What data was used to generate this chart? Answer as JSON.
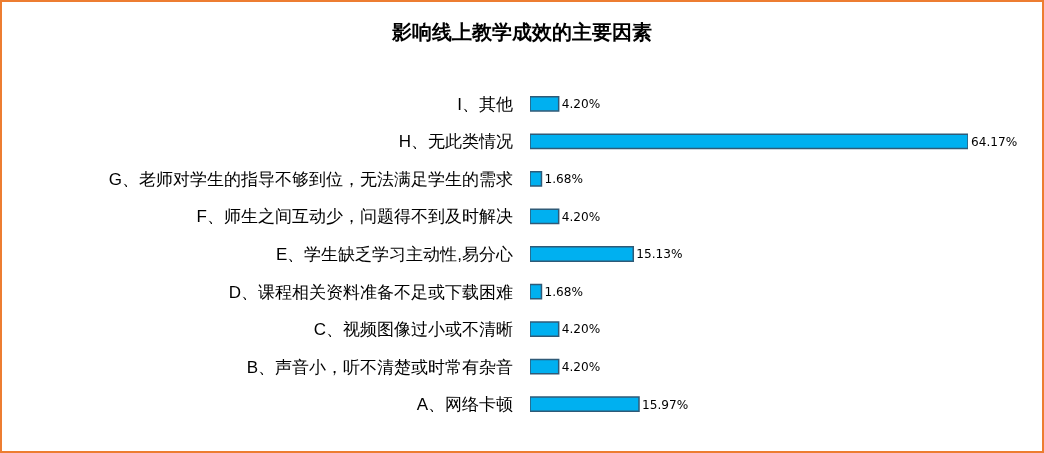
{
  "chart_data": {
    "type": "bar",
    "orientation": "horizontal",
    "title": "影响线上教学成效的主要因素",
    "categories": [
      "I、其他",
      "H、无此类情况",
      "G、老师对学生的指导不够到位，无法满足学生的需求",
      "F、师生之间互动少，问题得不到及时解决",
      "E、学生缺乏学习主动性,易分心",
      "D、课程相关资料准备不足或下载困难",
      "C、视频图像过小或不清晰",
      "B、声音小，听不清楚或时常有杂音",
      "A、网络卡顿"
    ],
    "values": [
      4.2,
      64.17,
      1.68,
      4.2,
      15.13,
      1.68,
      4.2,
      4.2,
      15.97
    ],
    "value_labels": [
      "4.20%",
      "64.17%",
      "1.68%",
      "4.20%",
      "15.13%",
      "1.68%",
      "4.20%",
      "4.20%",
      "15.97%"
    ],
    "color": "#00b0f0"
  }
}
